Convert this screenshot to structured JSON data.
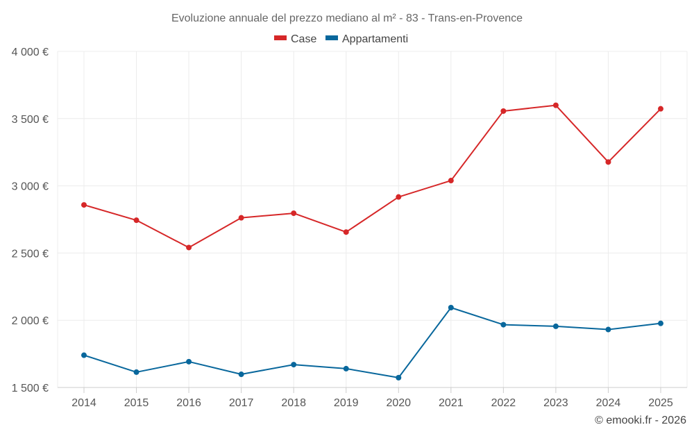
{
  "chart_data": {
    "type": "line",
    "title": "Evoluzione annuale del prezzo mediano al m² - 83 - Trans-en-Provence",
    "categories": [
      "2014",
      "2015",
      "2016",
      "2017",
      "2018",
      "2019",
      "2020",
      "2021",
      "2022",
      "2023",
      "2024",
      "2025"
    ],
    "series": [
      {
        "name": "Case",
        "color": "#d62728",
        "values": [
          2858,
          2744,
          2541,
          2762,
          2796,
          2656,
          2917,
          3039,
          3556,
          3599,
          3177,
          3573
        ]
      },
      {
        "name": "Appartamenti",
        "color": "#08679c",
        "values": [
          1740,
          1614,
          1692,
          1598,
          1670,
          1640,
          1573,
          2094,
          1967,
          1955,
          1931,
          1977
        ]
      }
    ],
    "ylim": [
      1500,
      4000
    ],
    "yticks": [
      1500,
      2000,
      2500,
      3000,
      3500,
      4000
    ],
    "ytick_labels": [
      "1 500 €",
      "2 000 €",
      "2 500 €",
      "3 000 €",
      "3 500 €",
      "4 000 €"
    ],
    "legend_position": "top-center",
    "grid": true,
    "xlabel": "",
    "ylabel": ""
  },
  "credit": "© emooki.fr - 2026"
}
